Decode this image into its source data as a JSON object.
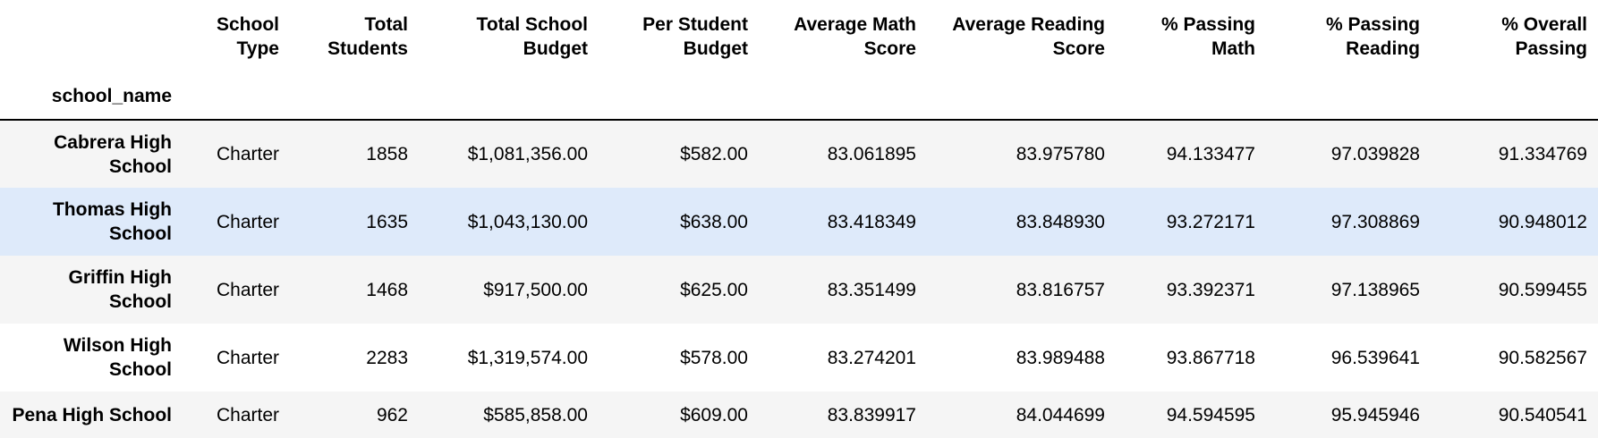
{
  "table": {
    "index_name": "school_name",
    "columns": [
      "School Type",
      "Total Students",
      "Total School Budget",
      "Per Student Budget",
      "Average Math Score",
      "Average Reading Score",
      "% Passing Math",
      "% Passing Reading",
      "% Overall Passing"
    ],
    "rows": [
      {
        "school_name": "Cabrera High School",
        "values": [
          "Charter",
          "1858",
          "$1,081,356.00",
          "$582.00",
          "83.061895",
          "83.975780",
          "94.133477",
          "97.039828",
          "91.334769"
        ]
      },
      {
        "school_name": "Thomas High School",
        "values": [
          "Charter",
          "1635",
          "$1,043,130.00",
          "$638.00",
          "83.418349",
          "83.848930",
          "93.272171",
          "97.308869",
          "90.948012"
        ]
      },
      {
        "school_name": "Griffin High School",
        "values": [
          "Charter",
          "1468",
          "$917,500.00",
          "$625.00",
          "83.351499",
          "83.816757",
          "93.392371",
          "97.138965",
          "90.599455"
        ]
      },
      {
        "school_name": "Wilson High School",
        "values": [
          "Charter",
          "2283",
          "$1,319,574.00",
          "$578.00",
          "83.274201",
          "83.989488",
          "93.867718",
          "96.539641",
          "90.582567"
        ]
      },
      {
        "school_name": "Pena High School",
        "values": [
          "Charter",
          "962",
          "$585,858.00",
          "$609.00",
          "83.839917",
          "84.044699",
          "94.594595",
          "95.945946",
          "90.540541"
        ]
      }
    ]
  },
  "colors": {
    "row_stripe": "#f5f5f5",
    "row_hover": "#deeafa",
    "header_rule": "#000000"
  }
}
